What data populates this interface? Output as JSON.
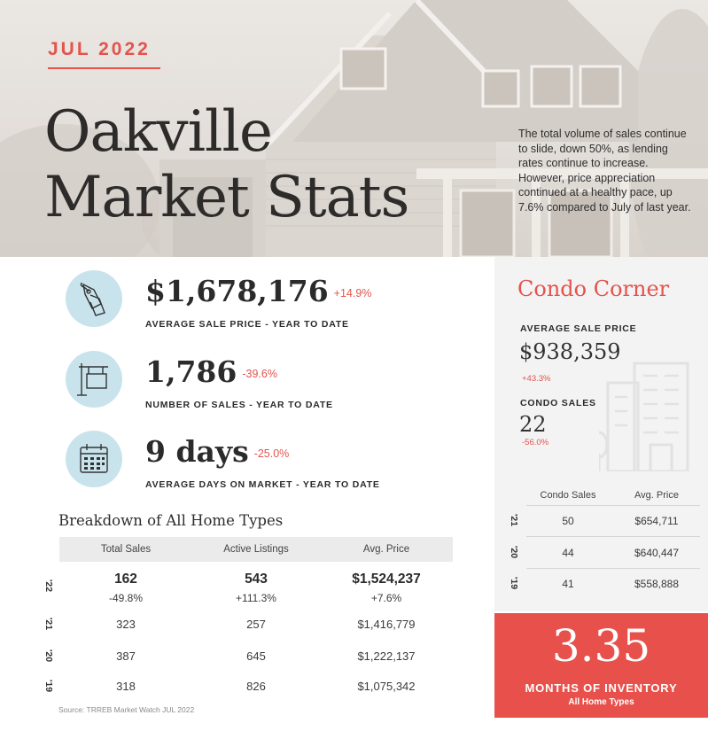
{
  "hero": {
    "month": "JUL 2022",
    "title_line1": "Oakville",
    "title_line2": "Market Stats",
    "description": "The total volume of sales continue to slide, down 50%, as lending rates continue to increase.  However, price appreciation continued at a healthy pace, up 7.6% compared to July of last year."
  },
  "kpis": [
    {
      "icon": "price-tag-icon",
      "value": "$1,678,176",
      "change": "+14.9%",
      "label": "AVERAGE SALE PRICE - YEAR TO DATE"
    },
    {
      "icon": "for-sale-sign-icon",
      "value": "1,786",
      "change": "-39.6%",
      "label": "NUMBER OF SALES - YEAR TO DATE"
    },
    {
      "icon": "calendar-icon",
      "value": "9 days",
      "change": "-25.0%",
      "label": "AVERAGE DAYS ON MARKET - YEAR TO DATE"
    }
  ],
  "breakdown": {
    "title": "Breakdown of All Home Types",
    "columns": [
      "Total Sales",
      "Active Listings",
      "Avg. Price"
    ],
    "rows": [
      {
        "year": "'22",
        "values": [
          "162",
          "543",
          "$1,524,237"
        ],
        "changes": [
          "-49.8%",
          "+111.3%",
          "+7.6%"
        ]
      },
      {
        "year": "'21",
        "values": [
          "323",
          "257",
          "$1,416,779"
        ]
      },
      {
        "year": "'20",
        "values": [
          "387",
          "645",
          "$1,222,137"
        ]
      },
      {
        "year": "'19",
        "values": [
          "318",
          "826",
          "$1,075,342"
        ]
      }
    ],
    "source": "Source: TRREB Market Watch JUL 2022"
  },
  "condo": {
    "title": "Condo Corner",
    "avg_price_label": "AVERAGE SALE PRICE",
    "avg_price_value": "$938,359",
    "avg_price_change": "+43.3%",
    "sales_label": "CONDO SALES",
    "sales_value": "22",
    "sales_change": "-56.0%",
    "columns": [
      "Condo Sales",
      "Avg. Price"
    ],
    "rows": [
      {
        "year": "'21",
        "values": [
          "50",
          "$654,711"
        ]
      },
      {
        "year": "'20",
        "values": [
          "44",
          "$640,447"
        ]
      },
      {
        "year": "'19",
        "values": [
          "41",
          "$558,888"
        ]
      }
    ]
  },
  "inventory": {
    "value": "3.35",
    "label": "MONTHS OF INVENTORY",
    "sub": "All Home Types"
  },
  "colors": {
    "accent": "#e4534c",
    "icon_circle": "#c9e3ec",
    "inventory_bg": "#e8514b"
  }
}
